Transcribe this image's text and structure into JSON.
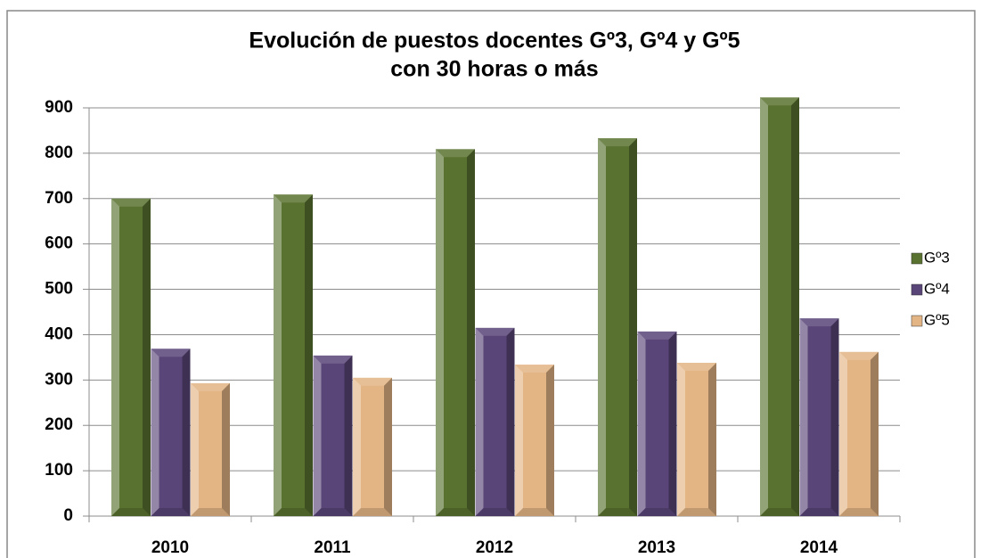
{
  "chart_data": {
    "type": "bar",
    "title": [
      "Evolución de puestos docentes Gº3, Gº4 y Gº5",
      "con 30 horas o más"
    ],
    "categories": [
      "2010",
      "2011",
      "2012",
      "2013",
      "2014"
    ],
    "series": [
      {
        "name": "Gº3",
        "color": "#5a7230",
        "values": [
          700,
          709,
          809,
          833,
          923
        ]
      },
      {
        "name": "Gº4",
        "color": "#5a4578",
        "values": [
          369,
          354,
          415,
          407,
          436
        ]
      },
      {
        "name": "Gº5",
        "color": "#e3b484",
        "values": [
          293,
          305,
          334,
          338,
          362
        ]
      }
    ],
    "ylim": [
      0,
      900
    ],
    "yticks": [
      0,
      100,
      200,
      300,
      400,
      500,
      600,
      700,
      800,
      900
    ],
    "grid": true,
    "legend": "right"
  }
}
